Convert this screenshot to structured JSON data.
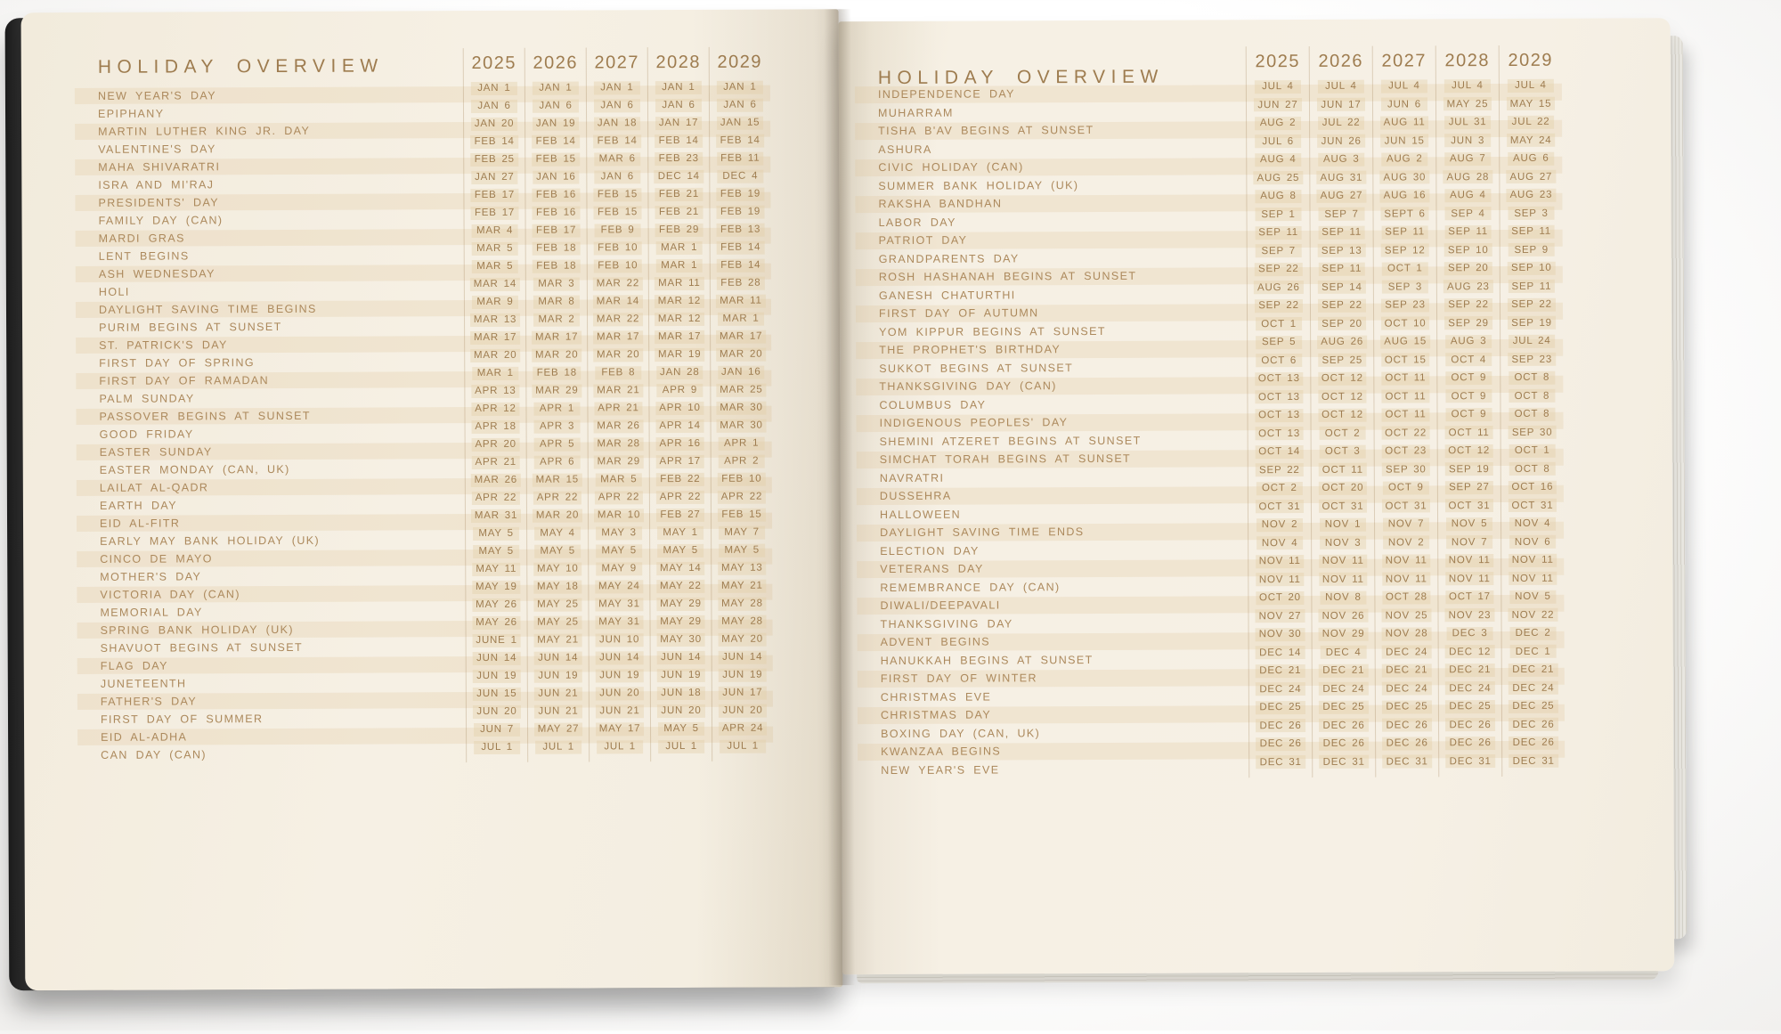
{
  "colors": {
    "page_cream": "#f5efe2",
    "text_tan": "#ac895c",
    "text_dark_tan": "#9e7c4f",
    "row_band": "#eee1ca",
    "cover_black": "#272727"
  },
  "left_page": {
    "title": "HOLIDAY OVERVIEW",
    "years": [
      "2025",
      "2026",
      "2027",
      "2028",
      "2029"
    ],
    "rows": [
      {
        "name": "NEW YEAR'S DAY",
        "dates": [
          "JAN 1",
          "JAN 1",
          "JAN 1",
          "JAN 1",
          "JAN 1"
        ]
      },
      {
        "name": "EPIPHANY",
        "dates": [
          "JAN 6",
          "JAN 6",
          "JAN 6",
          "JAN 6",
          "JAN 6"
        ]
      },
      {
        "name": "MARTIN LUTHER KING JR. DAY",
        "dates": [
          "JAN 20",
          "JAN 19",
          "JAN 18",
          "JAN 17",
          "JAN 15"
        ]
      },
      {
        "name": "VALENTINE'S DAY",
        "dates": [
          "FEB 14",
          "FEB 14",
          "FEB 14",
          "FEB 14",
          "FEB 14"
        ]
      },
      {
        "name": "MAHA SHIVARATRI",
        "dates": [
          "FEB 25",
          "FEB 15",
          "MAR 6",
          "FEB 23",
          "FEB 11"
        ]
      },
      {
        "name": "ISRA AND MI'RAJ",
        "dates": [
          "JAN 27",
          "JAN 16",
          "JAN 6",
          "DEC 14",
          "DEC 4"
        ]
      },
      {
        "name": "PRESIDENTS' DAY",
        "dates": [
          "FEB 17",
          "FEB 16",
          "FEB 15",
          "FEB 21",
          "FEB 19"
        ]
      },
      {
        "name": "FAMILY DAY (CAN)",
        "dates": [
          "FEB 17",
          "FEB 16",
          "FEB 15",
          "FEB 21",
          "FEB 19"
        ]
      },
      {
        "name": "MARDI GRAS",
        "dates": [
          "MAR 4",
          "FEB 17",
          "FEB 9",
          "FEB 29",
          "FEB 13"
        ]
      },
      {
        "name": "LENT BEGINS",
        "dates": [
          "MAR 5",
          "FEB 18",
          "FEB 10",
          "MAR 1",
          "FEB 14"
        ]
      },
      {
        "name": "ASH WEDNESDAY",
        "dates": [
          "MAR 5",
          "FEB 18",
          "FEB 10",
          "MAR 1",
          "FEB 14"
        ]
      },
      {
        "name": "HOLI",
        "dates": [
          "MAR 14",
          "MAR 3",
          "MAR 22",
          "MAR 11",
          "FEB 28"
        ]
      },
      {
        "name": "DAYLIGHT SAVING TIME BEGINS",
        "dates": [
          "MAR 9",
          "MAR 8",
          "MAR 14",
          "MAR 12",
          "MAR 11"
        ]
      },
      {
        "name": "PURIM BEGINS AT SUNSET",
        "dates": [
          "MAR 13",
          "MAR 2",
          "MAR 22",
          "MAR 12",
          "MAR 1"
        ]
      },
      {
        "name": "ST. PATRICK'S DAY",
        "dates": [
          "MAR 17",
          "MAR 17",
          "MAR 17",
          "MAR 17",
          "MAR 17"
        ]
      },
      {
        "name": "FIRST DAY OF SPRING",
        "dates": [
          "MAR 20",
          "MAR 20",
          "MAR 20",
          "MAR 19",
          "MAR 20"
        ]
      },
      {
        "name": "FIRST DAY OF RAMADAN",
        "dates": [
          "MAR 1",
          "FEB 18",
          "FEB 8",
          "JAN 28",
          "JAN 16"
        ]
      },
      {
        "name": "PALM SUNDAY",
        "dates": [
          "APR 13",
          "MAR 29",
          "MAR 21",
          "APR 9",
          "MAR 25"
        ]
      },
      {
        "name": "PASSOVER BEGINS AT SUNSET",
        "dates": [
          "APR 12",
          "APR 1",
          "APR 21",
          "APR 10",
          "MAR 30"
        ]
      },
      {
        "name": "GOOD FRIDAY",
        "dates": [
          "APR 18",
          "APR 3",
          "MAR 26",
          "APR 14",
          "MAR 30"
        ]
      },
      {
        "name": "EASTER SUNDAY",
        "dates": [
          "APR 20",
          "APR 5",
          "MAR 28",
          "APR 16",
          "APR 1"
        ]
      },
      {
        "name": "EASTER MONDAY (CAN, UK)",
        "dates": [
          "APR 21",
          "APR 6",
          "MAR 29",
          "APR 17",
          "APR 2"
        ]
      },
      {
        "name": "LAILAT AL-QADR",
        "dates": [
          "MAR 26",
          "MAR 15",
          "MAR 5",
          "FEB 22",
          "FEB 10"
        ]
      },
      {
        "name": "EARTH DAY",
        "dates": [
          "APR 22",
          "APR 22",
          "APR 22",
          "APR 22",
          "APR 22"
        ]
      },
      {
        "name": "EID AL-FITR",
        "dates": [
          "MAR 31",
          "MAR 20",
          "MAR 10",
          "FEB 27",
          "FEB 15"
        ]
      },
      {
        "name": "EARLY MAY BANK HOLIDAY (UK)",
        "dates": [
          "MAY 5",
          "MAY 4",
          "MAY 3",
          "MAY 1",
          "MAY 7"
        ]
      },
      {
        "name": "CINCO DE MAYO",
        "dates": [
          "MAY 5",
          "MAY 5",
          "MAY 5",
          "MAY 5",
          "MAY 5"
        ]
      },
      {
        "name": "MOTHER'S DAY",
        "dates": [
          "MAY 11",
          "MAY 10",
          "MAY 9",
          "MAY 14",
          "MAY 13"
        ]
      },
      {
        "name": "VICTORIA DAY (CAN)",
        "dates": [
          "MAY 19",
          "MAY 18",
          "MAY 24",
          "MAY 22",
          "MAY 21"
        ]
      },
      {
        "name": "MEMORIAL DAY",
        "dates": [
          "MAY 26",
          "MAY 25",
          "MAY 31",
          "MAY 29",
          "MAY 28"
        ]
      },
      {
        "name": "SPRING BANK HOLIDAY (UK)",
        "dates": [
          "MAY 26",
          "MAY 25",
          "MAY 31",
          "MAY 29",
          "MAY 28"
        ]
      },
      {
        "name": "SHAVUOT BEGINS AT SUNSET",
        "dates": [
          "JUNE 1",
          "MAY 21",
          "JUN 10",
          "MAY 30",
          "MAY 20"
        ]
      },
      {
        "name": "FLAG DAY",
        "dates": [
          "JUN 14",
          "JUN 14",
          "JUN 14",
          "JUN 14",
          "JUN 14"
        ]
      },
      {
        "name": "JUNETEENTH",
        "dates": [
          "JUN 19",
          "JUN 19",
          "JUN 19",
          "JUN 19",
          "JUN 19"
        ]
      },
      {
        "name": "FATHER'S DAY",
        "dates": [
          "JUN 15",
          "JUN 21",
          "JUN 20",
          "JUN 18",
          "JUN 17"
        ]
      },
      {
        "name": "FIRST DAY OF SUMMER",
        "dates": [
          "JUN 20",
          "JUN 21",
          "JUN 21",
          "JUN 20",
          "JUN 20"
        ]
      },
      {
        "name": "EID AL-ADHA",
        "dates": [
          "JUN 7",
          "MAY 27",
          "MAY 17",
          "MAY 5",
          "APR 24"
        ]
      },
      {
        "name": "CAN DAY (CAN)",
        "dates": [
          "JUL 1",
          "JUL 1",
          "JUL 1",
          "JUL 1",
          "JUL 1"
        ]
      }
    ]
  },
  "right_page": {
    "title": "HOLIDAY OVERVIEW",
    "years": [
      "2025",
      "2026",
      "2027",
      "2028",
      "2029"
    ],
    "rows": [
      {
        "name": "INDEPENDENCE DAY",
        "dates": [
          "JUL 4",
          "JUL 4",
          "JUL 4",
          "JUL 4",
          "JUL 4"
        ]
      },
      {
        "name": "MUHARRAM",
        "dates": [
          "JUN 27",
          "JUN 17",
          "JUN 6",
          "MAY 25",
          "MAY 15"
        ]
      },
      {
        "name": "TISHA B'AV BEGINS AT SUNSET",
        "dates": [
          "AUG 2",
          "JUL 22",
          "AUG 11",
          "JUL 31",
          "JUL 22"
        ]
      },
      {
        "name": "ASHURA",
        "dates": [
          "JUL 6",
          "JUN 26",
          "JUN 15",
          "JUN 3",
          "MAY 24"
        ]
      },
      {
        "name": "CIVIC HOLIDAY (CAN)",
        "dates": [
          "AUG 4",
          "AUG 3",
          "AUG 2",
          "AUG 7",
          "AUG 6"
        ]
      },
      {
        "name": "SUMMER BANK HOLIDAY (UK)",
        "dates": [
          "AUG 25",
          "AUG 31",
          "AUG 30",
          "AUG 28",
          "AUG 27"
        ]
      },
      {
        "name": "RAKSHA BANDHAN",
        "dates": [
          "AUG 8",
          "AUG 27",
          "AUG 16",
          "AUG 4",
          "AUG 23"
        ]
      },
      {
        "name": "LABOR DAY",
        "dates": [
          "SEP 1",
          "SEP 7",
          "SEPT 6",
          "SEP 4",
          "SEP 3"
        ]
      },
      {
        "name": "PATRIOT DAY",
        "dates": [
          "SEP 11",
          "SEP 11",
          "SEP 11",
          "SEP 11",
          "SEP 11"
        ]
      },
      {
        "name": "GRANDPARENTS DAY",
        "dates": [
          "SEP 7",
          "SEP 13",
          "SEP 12",
          "SEP 10",
          "SEP 9"
        ]
      },
      {
        "name": "ROSH HASHANAH BEGINS AT SUNSET",
        "dates": [
          "SEP 22",
          "SEP 11",
          "OCT 1",
          "SEP 20",
          "SEP 10"
        ]
      },
      {
        "name": "GANESH CHATURTHI",
        "dates": [
          "AUG 26",
          "SEP 14",
          "SEP 3",
          "AUG 23",
          "SEP 11"
        ]
      },
      {
        "name": "FIRST DAY OF AUTUMN",
        "dates": [
          "SEP 22",
          "SEP 22",
          "SEP 23",
          "SEP 22",
          "SEP 22"
        ]
      },
      {
        "name": "YOM KIPPUR BEGINS AT SUNSET",
        "dates": [
          "OCT 1",
          "SEP 20",
          "OCT 10",
          "SEP 29",
          "SEP 19"
        ]
      },
      {
        "name": "THE PROPHET'S BIRTHDAY",
        "dates": [
          "SEP 5",
          "AUG 26",
          "AUG 15",
          "AUG 3",
          "JUL 24"
        ]
      },
      {
        "name": "SUKKOT BEGINS AT SUNSET",
        "dates": [
          "OCT 6",
          "SEP 25",
          "OCT 15",
          "OCT 4",
          "SEP 23"
        ]
      },
      {
        "name": "THANKSGIVING DAY (CAN)",
        "dates": [
          "OCT 13",
          "OCT 12",
          "OCT 11",
          "OCT 9",
          "OCT 8"
        ]
      },
      {
        "name": "COLUMBUS DAY",
        "dates": [
          "OCT 13",
          "OCT 12",
          "OCT 11",
          "OCT 9",
          "OCT 8"
        ]
      },
      {
        "name": "INDIGENOUS PEOPLES' DAY",
        "dates": [
          "OCT 13",
          "OCT 12",
          "OCT 11",
          "OCT 9",
          "OCT 8"
        ]
      },
      {
        "name": "SHEMINI ATZERET BEGINS AT SUNSET",
        "dates": [
          "OCT 13",
          "OCT 2",
          "OCT 22",
          "OCT 11",
          "SEP 30"
        ]
      },
      {
        "name": "SIMCHAT TORAH BEGINS AT SUNSET",
        "dates": [
          "OCT 14",
          "OCT 3",
          "OCT 23",
          "OCT 12",
          "OCT 1"
        ]
      },
      {
        "name": "NAVRATRI",
        "dates": [
          "SEP 22",
          "OCT 11",
          "SEP 30",
          "SEP 19",
          "OCT 8"
        ]
      },
      {
        "name": "DUSSEHRA",
        "dates": [
          "OCT 2",
          "OCT 20",
          "OCT 9",
          "SEP 27",
          "OCT 16"
        ]
      },
      {
        "name": "HALLOWEEN",
        "dates": [
          "OCT 31",
          "OCT 31",
          "OCT 31",
          "OCT 31",
          "OCT 31"
        ]
      },
      {
        "name": "DAYLIGHT SAVING TIME ENDS",
        "dates": [
          "NOV 2",
          "NOV 1",
          "NOV 7",
          "NOV 5",
          "NOV 4"
        ]
      },
      {
        "name": "ELECTION DAY",
        "dates": [
          "NOV 4",
          "NOV 3",
          "NOV 2",
          "NOV 7",
          "NOV 6"
        ]
      },
      {
        "name": "VETERANS DAY",
        "dates": [
          "NOV 11",
          "NOV 11",
          "NOV 11",
          "NOV 11",
          "NOV 11"
        ]
      },
      {
        "name": "REMEMBRANCE DAY (CAN)",
        "dates": [
          "NOV 11",
          "NOV 11",
          "NOV 11",
          "NOV 11",
          "NOV 11"
        ]
      },
      {
        "name": "DIWALI/DEEPAVALI",
        "dates": [
          "OCT 20",
          "NOV 8",
          "OCT 28",
          "OCT 17",
          "NOV 5"
        ]
      },
      {
        "name": "THANKSGIVING DAY",
        "dates": [
          "NOV 27",
          "NOV 26",
          "NOV 25",
          "NOV 23",
          "NOV 22"
        ]
      },
      {
        "name": "ADVENT BEGINS",
        "dates": [
          "NOV 30",
          "NOV 29",
          "NOV 28",
          "DEC 3",
          "DEC 2"
        ]
      },
      {
        "name": "HANUKKAH BEGINS AT SUNSET",
        "dates": [
          "DEC 14",
          "DEC 4",
          "DEC 24",
          "DEC 12",
          "DEC 1"
        ]
      },
      {
        "name": "FIRST DAY OF WINTER",
        "dates": [
          "DEC 21",
          "DEC 21",
          "DEC 21",
          "DEC 21",
          "DEC 21"
        ]
      },
      {
        "name": "CHRISTMAS EVE",
        "dates": [
          "DEC 24",
          "DEC 24",
          "DEC 24",
          "DEC 24",
          "DEC 24"
        ]
      },
      {
        "name": "CHRISTMAS DAY",
        "dates": [
          "DEC 25",
          "DEC 25",
          "DEC 25",
          "DEC 25",
          "DEC 25"
        ]
      },
      {
        "name": "BOXING DAY (CAN, UK)",
        "dates": [
          "DEC 26",
          "DEC 26",
          "DEC 26",
          "DEC 26",
          "DEC 26"
        ]
      },
      {
        "name": "KWANZAA BEGINS",
        "dates": [
          "DEC 26",
          "DEC 26",
          "DEC 26",
          "DEC 26",
          "DEC 26"
        ]
      },
      {
        "name": "NEW YEAR'S EVE",
        "dates": [
          "DEC 31",
          "DEC 31",
          "DEC 31",
          "DEC 31",
          "DEC 31"
        ]
      }
    ]
  }
}
